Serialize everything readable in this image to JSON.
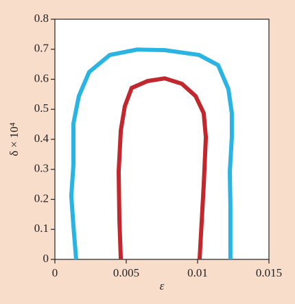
{
  "chart_data": {
    "type": "line",
    "xlabel": "ε",
    "ylabel": "δ × 10⁴",
    "xlim": [
      0,
      0.015
    ],
    "xticks": [
      0,
      0.005,
      0.01,
      0.015
    ],
    "ylim": [
      0,
      0.8
    ],
    "yticks": [
      0,
      0.1,
      0.2,
      0.3,
      0.4,
      0.5,
      0.6,
      0.7,
      0.8
    ],
    "series": [
      {
        "color": "#29b4e4",
        "x": [
          0.00149,
          0.0013,
          0.00115,
          0.0013,
          0.0013,
          0.00168,
          0.0024,
          0.00385,
          0.00577,
          0.0077,
          0.0101,
          0.01144,
          0.01216,
          0.0124,
          0.0124,
          0.01226,
          0.0123,
          0.0123
        ],
        "values": [
          0,
          0.11,
          0.212,
          0.315,
          0.453,
          0.544,
          0.624,
          0.681,
          0.699,
          0.697,
          0.681,
          0.647,
          0.567,
          0.487,
          0.407,
          0.293,
          0.178,
          0
        ]
      },
      {
        "color": "#c1272d",
        "x": [
          0.00462,
          0.00452,
          0.00447,
          0.00462,
          0.0049,
          0.00538,
          0.00649,
          0.0077,
          0.0089,
          0.00986,
          0.01043,
          0.01058,
          0.01043,
          0.01014
        ],
        "values": [
          0,
          0.133,
          0.293,
          0.43,
          0.51,
          0.571,
          0.594,
          0.603,
          0.585,
          0.544,
          0.487,
          0.407,
          0.247,
          0
        ]
      }
    ]
  }
}
